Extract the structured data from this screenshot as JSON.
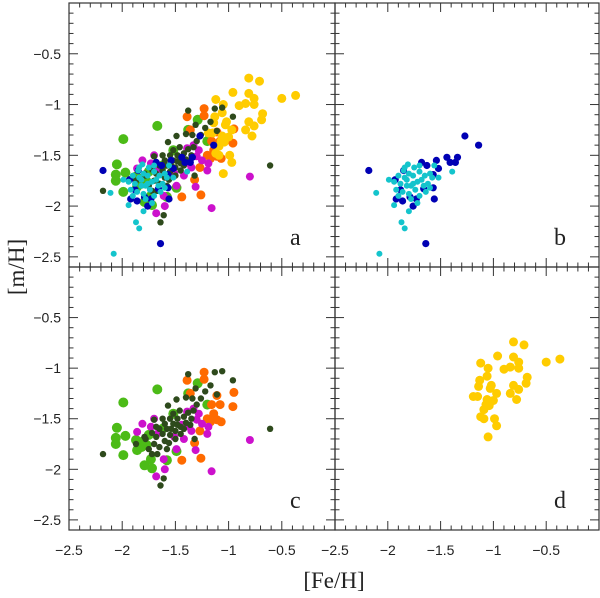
{
  "chart_data": {
    "type": "scatter",
    "xlabel": "[Fe/H]",
    "ylabel": "[m/H]",
    "xlim": [
      -2.5,
      0.0
    ],
    "ylim": [
      -2.6,
      0.0
    ],
    "x_ticks": [
      -2.5,
      -2,
      -1.5,
      -1,
      -0.5
    ],
    "x_tick_labels": [
      "−2.5",
      "−2",
      "−1.5",
      "−1",
      "−0.5"
    ],
    "y_ticks": [
      -0.5,
      -1,
      -1.5,
      -2,
      -2.5
    ],
    "y_tick_labels": [
      "−0.5",
      "−1",
      "−1.5",
      "−2",
      "−2.5"
    ],
    "panels": [
      {
        "label": "a",
        "series": [
          "green",
          "orange",
          "magenta",
          "yellow",
          "darkgreen",
          "blue",
          "cyan"
        ]
      },
      {
        "label": "b",
        "series": [
          "blue",
          "cyan"
        ]
      },
      {
        "label": "c",
        "series": [
          "green",
          "orange",
          "magenta",
          "darkgreen"
        ]
      },
      {
        "label": "d",
        "series": [
          "yellow"
        ]
      }
    ],
    "series": {
      "green": {
        "color": "#4cbb17",
        "size": 5,
        "points": [
          [
            -1.67,
            -1.21
          ],
          [
            -1.99,
            -1.34
          ],
          [
            -2.05,
            -1.59
          ],
          [
            -1.97,
            -1.67
          ],
          [
            -2.06,
            -1.69
          ],
          [
            -2.06,
            -1.75
          ],
          [
            -1.99,
            -1.86
          ],
          [
            -1.87,
            -1.71
          ],
          [
            -1.86,
            -1.81
          ],
          [
            -1.79,
            -1.96
          ],
          [
            -1.72,
            -1.99
          ],
          [
            -1.73,
            -1.9
          ],
          [
            -1.29,
            -1.15
          ],
          [
            -1.38,
            -1.25
          ],
          [
            -1.52,
            -1.45
          ],
          [
            -1.49,
            -1.82
          ],
          [
            -1.58,
            -1.91
          ],
          [
            -1.2,
            -1.36
          ],
          [
            -1.77,
            -1.76
          ],
          [
            -1.82,
            -1.78
          ],
          [
            -1.75,
            -1.66
          ],
          [
            -1.62,
            -1.6
          ],
          [
            -1.8,
            -1.72
          ]
        ]
      },
      "orange": {
        "color": "#ff6a00",
        "size": 4.5,
        "points": [
          [
            -1.23,
            -1.04
          ],
          [
            -1.23,
            -1.11
          ],
          [
            -1.39,
            -1.12
          ],
          [
            -0.95,
            -1.24
          ],
          [
            -0.96,
            -1.38
          ],
          [
            -1.08,
            -1.36
          ],
          [
            -1.16,
            -1.36
          ],
          [
            -1.14,
            -1.45
          ],
          [
            -1.2,
            -1.5
          ],
          [
            -1.07,
            -1.53
          ],
          [
            -1.11,
            -1.51
          ],
          [
            -1.17,
            -1.53
          ],
          [
            -1.27,
            -1.62
          ],
          [
            -1.32,
            -1.74
          ],
          [
            -1.26,
            -1.89
          ],
          [
            -1.44,
            -1.91
          ],
          [
            -1.36,
            -1.25
          ],
          [
            -1.11,
            -1.27
          ]
        ]
      },
      "magenta": {
        "color": "#cc11cc",
        "size": 4,
        "points": [
          [
            -0.8,
            -1.71
          ],
          [
            -1.16,
            -2.02
          ],
          [
            -1.68,
            -2.07
          ],
          [
            -1.6,
            -2.0
          ],
          [
            -1.61,
            -1.9
          ],
          [
            -1.49,
            -1.8
          ],
          [
            -1.31,
            -1.81
          ],
          [
            -1.81,
            -1.55
          ],
          [
            -1.86,
            -1.63
          ],
          [
            -1.7,
            -1.5
          ],
          [
            -1.42,
            -1.7
          ],
          [
            -1.2,
            -1.65
          ],
          [
            -1.19,
            -1.58
          ],
          [
            -1.3,
            -1.51
          ],
          [
            -1.37,
            -1.58
          ],
          [
            -1.33,
            -1.4
          ],
          [
            -1.39,
            -1.43
          ],
          [
            -1.28,
            -1.45
          ],
          [
            -1.25,
            -1.55
          ],
          [
            -1.51,
            -1.68
          ],
          [
            -1.73,
            -1.58
          ],
          [
            -1.35,
            -1.62
          ],
          [
            -1.44,
            -1.56
          ],
          [
            -1.66,
            -1.64
          ]
        ]
      },
      "yellow": {
        "color": "#ffcc00",
        "size": 4.5,
        "points": [
          [
            -0.81,
            -0.74
          ],
          [
            -0.71,
            -0.77
          ],
          [
            -0.96,
            -0.88
          ],
          [
            -0.81,
            -0.89
          ],
          [
            -0.76,
            -0.94
          ],
          [
            -1.12,
            -0.95
          ],
          [
            -1.05,
            -1.0
          ],
          [
            -0.84,
            -0.99
          ],
          [
            -0.9,
            -1.01
          ],
          [
            -0.76,
            -1.0
          ],
          [
            -0.5,
            -0.94
          ],
          [
            -0.37,
            -0.91
          ],
          [
            -1.06,
            -1.08
          ],
          [
            -1.13,
            -1.12
          ],
          [
            -0.68,
            -1.09
          ],
          [
            -0.69,
            -1.15
          ],
          [
            -1.14,
            -1.18
          ],
          [
            -1.02,
            -1.17
          ],
          [
            -1.03,
            -1.2
          ],
          [
            -0.81,
            -1.17
          ],
          [
            -0.76,
            -1.21
          ],
          [
            -0.97,
            -1.25
          ],
          [
            -0.84,
            -1.25
          ],
          [
            -1.19,
            -1.28
          ],
          [
            -1.15,
            -1.28
          ],
          [
            -0.78,
            -1.31
          ],
          [
            -1.06,
            -1.31
          ],
          [
            -1.03,
            -1.33
          ],
          [
            -1.0,
            -1.32
          ],
          [
            -1.07,
            -1.36
          ],
          [
            -1.04,
            -1.37
          ],
          [
            -1.09,
            -1.41
          ],
          [
            -1.12,
            -1.48
          ],
          [
            -1.09,
            -1.5
          ],
          [
            -0.99,
            -1.5
          ],
          [
            -0.97,
            -1.57
          ],
          [
            -1.05,
            -1.68
          ]
        ]
      },
      "darkgreen": {
        "color": "#2e4a1c",
        "size": 3.2,
        "points": [
          [
            -2.18,
            -1.85
          ],
          [
            -0.61,
            -1.6
          ],
          [
            -1.64,
            -2.16
          ],
          [
            -1.61,
            -2.09
          ],
          [
            -1.38,
            -1.06
          ],
          [
            -1.13,
            -1.04
          ],
          [
            -1.06,
            -1.03
          ],
          [
            -0.96,
            -1.12
          ],
          [
            -1.17,
            -1.17
          ],
          [
            -1.22,
            -1.23
          ],
          [
            -1.11,
            -1.26
          ],
          [
            -1.31,
            -1.2
          ],
          [
            -1.4,
            -1.29
          ],
          [
            -1.49,
            -1.31
          ],
          [
            -1.57,
            -1.37
          ],
          [
            -1.32,
            -1.7
          ],
          [
            -1.87,
            -1.75
          ],
          [
            -1.72,
            -1.85
          ],
          [
            -1.67,
            -1.85
          ],
          [
            -1.79,
            -1.68
          ],
          [
            -1.7,
            -1.51
          ],
          [
            -1.75,
            -1.8
          ],
          [
            -1.7,
            -1.75
          ],
          [
            -1.68,
            -1.68
          ],
          [
            -1.65,
            -1.78
          ],
          [
            -1.62,
            -1.65
          ],
          [
            -1.6,
            -1.72
          ],
          [
            -1.58,
            -1.6
          ],
          [
            -1.55,
            -1.66
          ],
          [
            -1.52,
            -1.55
          ],
          [
            -1.5,
            -1.62
          ],
          [
            -1.48,
            -1.5
          ],
          [
            -1.45,
            -1.58
          ],
          [
            -1.42,
            -1.48
          ],
          [
            -1.4,
            -1.54
          ],
          [
            -1.38,
            -1.44
          ],
          [
            -1.35,
            -1.5
          ],
          [
            -1.33,
            -1.42
          ],
          [
            -1.55,
            -1.5
          ],
          [
            -1.6,
            -1.55
          ],
          [
            -1.5,
            -1.7
          ],
          [
            -1.45,
            -1.65
          ],
          [
            -1.65,
            -1.6
          ],
          [
            -1.72,
            -1.64
          ],
          [
            -1.58,
            -1.8
          ],
          [
            -1.52,
            -1.45
          ],
          [
            -1.46,
            -1.42
          ],
          [
            -1.62,
            -1.5
          ],
          [
            -1.68,
            -1.58
          ],
          [
            -1.42,
            -1.6
          ],
          [
            -1.36,
            -1.56
          ],
          [
            -1.56,
            -1.74
          ],
          [
            -1.78,
            -1.7
          ],
          [
            -1.48,
            -1.56
          ],
          [
            -1.54,
            -1.6
          ],
          [
            -1.3,
            -1.36
          ],
          [
            -1.34,
            -1.3
          ],
          [
            -1.26,
            -1.3
          ]
        ]
      },
      "blue": {
        "color": "#0000b4",
        "size": 3.6,
        "points": [
          [
            -1.27,
            -1.31
          ],
          [
            -1.14,
            -1.4
          ],
          [
            -2.18,
            -1.65
          ],
          [
            -1.44,
            -1.52
          ],
          [
            -1.34,
            -1.52
          ],
          [
            -1.41,
            -1.57
          ],
          [
            -1.36,
            -1.57
          ],
          [
            -1.54,
            -1.55
          ],
          [
            -1.52,
            -1.63
          ],
          [
            -1.57,
            -1.69
          ],
          [
            -1.57,
            -1.82
          ],
          [
            -1.56,
            -1.93
          ],
          [
            -1.68,
            -1.57
          ],
          [
            -1.63,
            -1.6
          ],
          [
            -1.85,
            -1.65
          ],
          [
            -1.93,
            -1.74
          ],
          [
            -1.92,
            -1.93
          ],
          [
            -1.86,
            -1.95
          ],
          [
            -1.76,
            -2.0
          ],
          [
            -1.73,
            -1.93
          ],
          [
            -1.64,
            -2.37
          ],
          [
            -1.66,
            -1.83
          ],
          [
            -1.79,
            -1.91
          ],
          [
            -1.88,
            -1.84
          ]
        ]
      },
      "cyan": {
        "color": "#14c4cc",
        "size": 3,
        "points": [
          [
            -2.08,
            -2.47
          ],
          [
            -2.11,
            -1.87
          ],
          [
            -1.87,
            -2.16
          ],
          [
            -1.84,
            -2.22
          ],
          [
            -1.8,
            -2.05
          ],
          [
            -1.94,
            -1.99
          ],
          [
            -1.99,
            -1.74
          ],
          [
            -1.39,
            -1.66
          ],
          [
            -1.52,
            -1.72
          ],
          [
            -1.56,
            -1.6
          ],
          [
            -1.81,
            -1.59
          ],
          [
            -1.9,
            -1.7
          ],
          [
            -1.85,
            -1.65
          ],
          [
            -1.8,
            -1.68
          ],
          [
            -1.75,
            -1.62
          ],
          [
            -1.7,
            -1.66
          ],
          [
            -1.65,
            -1.7
          ],
          [
            -1.6,
            -1.68
          ],
          [
            -1.88,
            -1.78
          ],
          [
            -1.82,
            -1.74
          ],
          [
            -1.78,
            -1.8
          ],
          [
            -1.72,
            -1.76
          ],
          [
            -1.68,
            -1.74
          ],
          [
            -1.62,
            -1.78
          ],
          [
            -1.58,
            -1.72
          ],
          [
            -1.92,
            -1.84
          ],
          [
            -1.86,
            -1.86
          ],
          [
            -1.8,
            -1.88
          ],
          [
            -1.74,
            -1.84
          ],
          [
            -1.7,
            -1.9
          ],
          [
            -1.64,
            -1.86
          ],
          [
            -1.76,
            -1.7
          ],
          [
            -1.84,
            -1.72
          ],
          [
            -1.66,
            -1.8
          ],
          [
            -1.94,
            -1.76
          ],
          [
            -1.78,
            -1.93
          ],
          [
            -1.72,
            -1.97
          ],
          [
            -1.84,
            -1.62
          ],
          [
            -1.7,
            -1.6
          ],
          [
            -1.6,
            -1.82
          ],
          [
            -1.9,
            -1.9
          ],
          [
            -1.76,
            -1.78
          ],
          [
            -1.82,
            -1.8
          ]
        ]
      }
    }
  }
}
